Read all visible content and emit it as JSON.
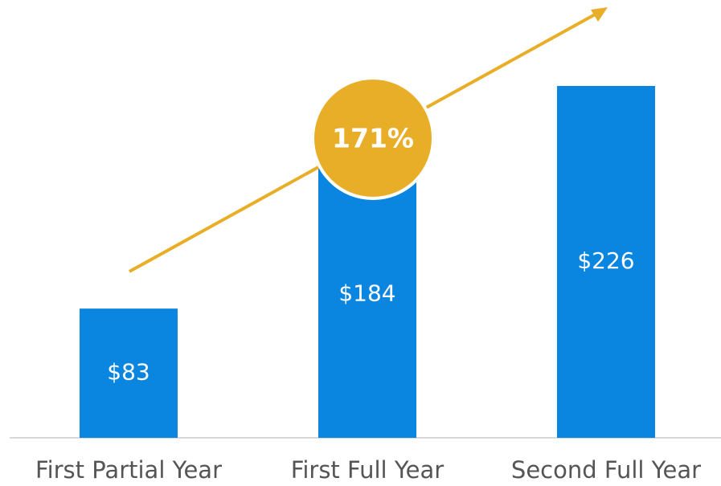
{
  "chart_data": {
    "type": "bar",
    "categories": [
      "First Partial Year",
      "First Full Year",
      "Second Full Year"
    ],
    "values": [
      83,
      184,
      226
    ],
    "value_labels": [
      "$83",
      "$184",
      "$226"
    ],
    "color": "#0a86e0",
    "annotation": "171%",
    "annotation_color": "#e8ae27"
  }
}
